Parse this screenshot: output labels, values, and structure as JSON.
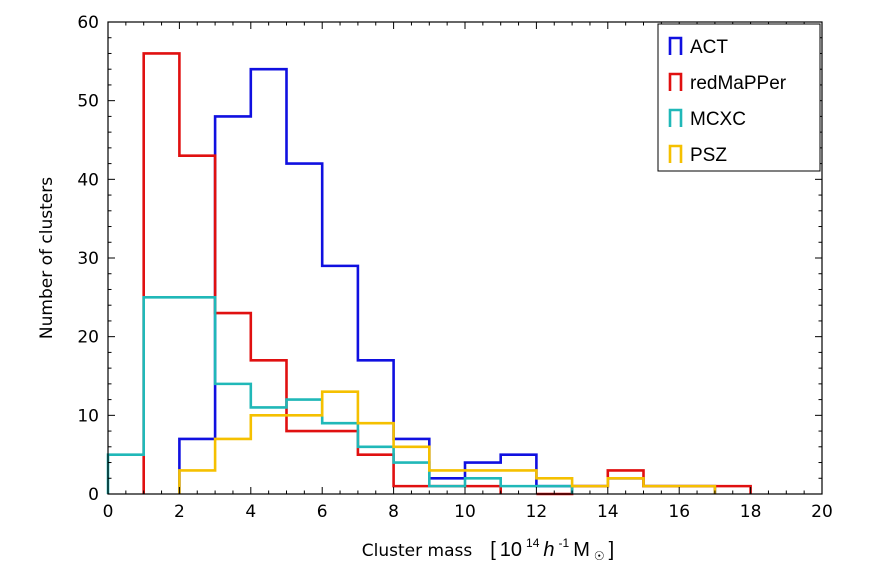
{
  "chart_data": {
    "type": "histogram",
    "title": "",
    "xlabel": "Cluster mass",
    "xlabel_unit": {
      "open": "[",
      "base": "10",
      "exp": "14",
      "h": "h",
      "hexp": "-1",
      "m": "M",
      "sun": "☉",
      "close": "]"
    },
    "ylabel": "Number of clusters",
    "xlim": [
      0,
      20
    ],
    "ylim": [
      0,
      60
    ],
    "xticks": [
      0,
      2,
      4,
      6,
      8,
      10,
      12,
      14,
      16,
      18,
      20
    ],
    "yticks": [
      0,
      10,
      20,
      30,
      40,
      50,
      60
    ],
    "legend_position": "top-right",
    "series": [
      {
        "name": "ACT",
        "color": "#1010e0",
        "bins": [
          [
            2,
            3,
            7
          ],
          [
            3,
            4,
            48
          ],
          [
            4,
            5,
            54
          ],
          [
            5,
            6,
            42
          ],
          [
            6,
            7,
            29
          ],
          [
            7,
            8,
            17
          ],
          [
            8,
            9,
            7
          ],
          [
            9,
            10,
            2
          ],
          [
            10,
            11,
            4
          ],
          [
            11,
            12,
            5
          ],
          [
            12,
            13,
            1
          ],
          [
            13,
            14,
            1
          ],
          [
            14,
            15,
            2
          ],
          [
            15,
            16,
            1
          ],
          [
            16,
            17,
            1
          ]
        ]
      },
      {
        "name": "redMaPPer",
        "color": "#e01010",
        "bins": [
          [
            1,
            2,
            56
          ],
          [
            2,
            3,
            43
          ],
          [
            3,
            4,
            23
          ],
          [
            4,
            5,
            17
          ],
          [
            5,
            6,
            8
          ],
          [
            6,
            7,
            8
          ],
          [
            7,
            8,
            5
          ],
          [
            8,
            9,
            1
          ],
          [
            9,
            10,
            1
          ],
          [
            10,
            11,
            1
          ],
          [
            12,
            13,
            0
          ],
          [
            13,
            14,
            1
          ],
          [
            14,
            15,
            3
          ],
          [
            15,
            16,
            1
          ],
          [
            16,
            17,
            1
          ],
          [
            17,
            18,
            1
          ]
        ]
      },
      {
        "name": "MCXC",
        "color": "#20b8b8",
        "bins": [
          [
            0,
            1,
            5
          ],
          [
            1,
            2,
            25
          ],
          [
            2,
            3,
            25
          ],
          [
            3,
            4,
            14
          ],
          [
            4,
            5,
            11
          ],
          [
            5,
            6,
            12
          ],
          [
            6,
            7,
            9
          ],
          [
            7,
            8,
            6
          ],
          [
            8,
            9,
            4
          ],
          [
            9,
            10,
            1
          ],
          [
            10,
            11,
            2
          ],
          [
            11,
            12,
            1
          ],
          [
            12,
            13,
            1
          ]
        ]
      },
      {
        "name": "PSZ",
        "color": "#f5c000",
        "bins": [
          [
            2,
            3,
            3
          ],
          [
            3,
            4,
            7
          ],
          [
            4,
            5,
            10
          ],
          [
            5,
            6,
            10
          ],
          [
            6,
            7,
            13
          ],
          [
            7,
            8,
            9
          ],
          [
            8,
            9,
            6
          ],
          [
            9,
            10,
            3
          ],
          [
            10,
            11,
            3
          ],
          [
            11,
            12,
            3
          ],
          [
            12,
            13,
            2
          ],
          [
            13,
            14,
            1
          ],
          [
            14,
            15,
            2
          ],
          [
            15,
            16,
            1
          ],
          [
            16,
            17,
            1
          ]
        ]
      }
    ]
  }
}
